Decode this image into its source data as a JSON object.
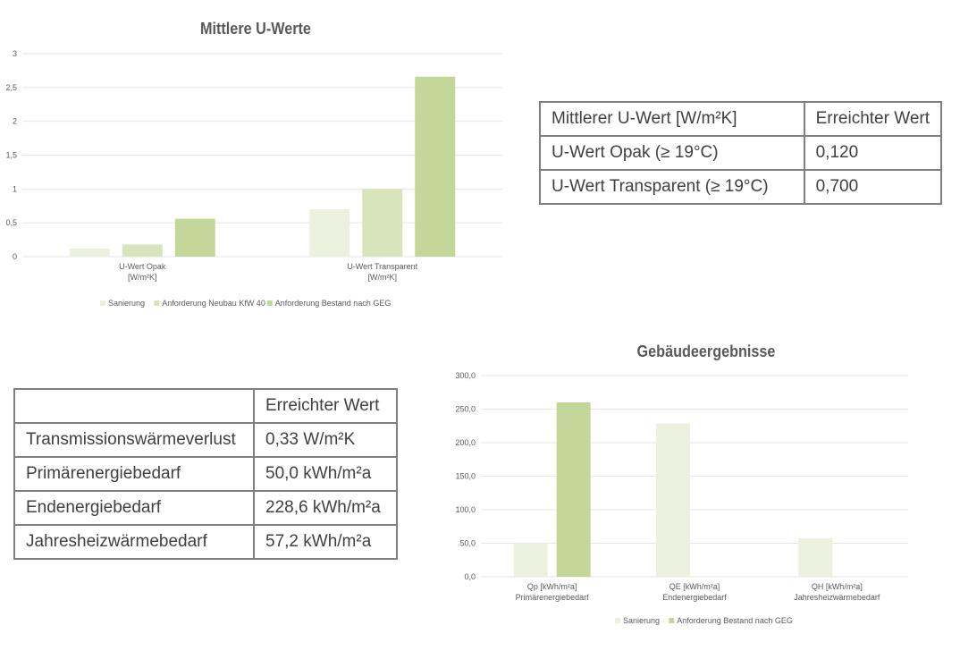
{
  "chart_data": [
    {
      "type": "bar",
      "title": "Mittlere U-Werte",
      "categories": [
        [
          "U-Wert Opak",
          "[W/m²K]"
        ],
        [
          "U-Wert Transparent",
          "[W/m²K]"
        ]
      ],
      "series": [
        {
          "name": "Sanierung",
          "color": "#ebf1de",
          "values": [
            0.12,
            0.7
          ]
        },
        {
          "name": "Anforderung Neubau KfW 40",
          "color": "#d8e4bc",
          "values": [
            0.18,
            1.0
          ]
        },
        {
          "name": "Anforderung Bestand nach GEG",
          "color": "#c4d79b",
          "values": [
            0.56,
            2.66
          ]
        }
      ],
      "ylim": [
        0,
        3
      ],
      "yticks": [
        "0",
        "0,5",
        "1",
        "1,5",
        "2",
        "2,5",
        "3"
      ],
      "legend": "bottom",
      "grid": true
    },
    {
      "type": "bar",
      "title": "Gebäudeergebnisse",
      "categories": [
        [
          "Qp [kWh/m²a]",
          "Primärenergiebedarf"
        ],
        [
          "QE [kWh/m²a]",
          "Endenergiebedarf"
        ],
        [
          "QH [kWh/m²a]",
          "Jahresheizwärmebedarf"
        ]
      ],
      "series": [
        {
          "name": "Sanierung",
          "color": "#ebf1de",
          "values": [
            50.0,
            228.6,
            57.2
          ]
        },
        {
          "name": "Anforderung Bestand nach GEG",
          "color": "#c4d79b",
          "values": [
            260,
            null,
            null
          ]
        }
      ],
      "ylim": [
        0,
        300
      ],
      "yticks": [
        "0,0",
        "50,0",
        "100,0",
        "150,0",
        "200,0",
        "250,0",
        "300,0"
      ],
      "legend": "bottom",
      "grid": true
    }
  ],
  "table_uwert": {
    "header": [
      "Mittlerer U-Wert [W/m²K]",
      "Erreichter Wert"
    ],
    "rows": [
      [
        "U-Wert Opak (≥ 19°C)",
        "0,120"
      ],
      [
        "U-Wert Transparent (≥ 19°C)",
        "0,700"
      ]
    ]
  },
  "table_results": {
    "header": [
      "",
      "Erreichter Wert"
    ],
    "rows": [
      [
        "Transmissionswärmeverlust",
        "0,33 W/m²K"
      ],
      [
        "Primärenergiebedarf",
        "50,0 kWh/m²a"
      ],
      [
        "Endenergiebedarf",
        "228,6 kWh/m²a"
      ],
      [
        "Jahresheizwärmebedarf",
        "57,2 kWh/m²a"
      ]
    ]
  }
}
